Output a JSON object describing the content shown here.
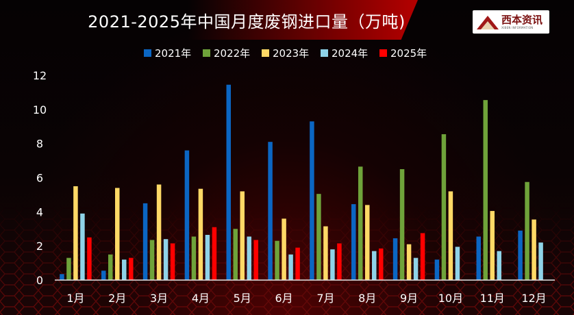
{
  "title": "2021-2025年中国月度废钢进口量（万吨)",
  "logo": {
    "text": "西本资讯",
    "subtext": "XIBEN INFORMATION"
  },
  "chart_data": {
    "type": "bar",
    "title": "2021-2025年中国月度废钢进口量（万吨)",
    "xlabel": "",
    "ylabel": "",
    "ylim": [
      0,
      12
    ],
    "yticks": [
      0,
      2,
      4,
      6,
      8,
      10,
      12
    ],
    "grid": false,
    "legend_position": "top-center",
    "categories": [
      "1月",
      "2月",
      "3月",
      "4月",
      "5月",
      "6月",
      "7月",
      "8月",
      "9月",
      "10月",
      "11月",
      "12月"
    ],
    "series": [
      {
        "name": "2021年",
        "color": "#0b66c3",
        "values": [
          0.35,
          0.55,
          4.5,
          7.6,
          11.45,
          8.1,
          9.3,
          4.45,
          2.45,
          1.2,
          2.55,
          2.9
        ]
      },
      {
        "name": "2022年",
        "color": "#6fa33a",
        "values": [
          1.3,
          1.5,
          2.35,
          2.55,
          3.0,
          2.3,
          5.05,
          6.65,
          6.5,
          8.55,
          10.55,
          5.75
        ]
      },
      {
        "name": "2023年",
        "color": "#ffd966",
        "values": [
          5.5,
          5.4,
          5.6,
          5.35,
          5.2,
          3.6,
          3.15,
          4.4,
          2.1,
          5.2,
          4.05,
          3.55
        ]
      },
      {
        "name": "2024年",
        "color": "#8fd3e8",
        "values": [
          3.9,
          1.2,
          2.4,
          2.65,
          2.55,
          1.5,
          1.8,
          1.7,
          1.3,
          1.95,
          1.7,
          2.2
        ]
      },
      {
        "name": "2025年",
        "color": "#ff0000",
        "values": [
          2.5,
          1.3,
          2.15,
          3.1,
          2.35,
          1.9,
          2.15,
          1.85,
          2.75,
          null,
          null,
          null
        ]
      }
    ]
  }
}
